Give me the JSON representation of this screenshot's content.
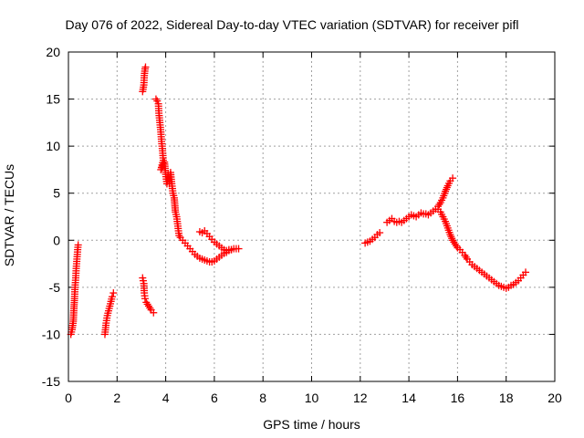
{
  "chart_data": {
    "type": "scatter",
    "title": "Day 076 of 2022, Sidereal Day-to-day VTEC variation (SDTVAR) for receiver pifl",
    "xlabel": "GPS time / hours",
    "ylabel": "SDTVAR / TECUs",
    "xlim": [
      0,
      20
    ],
    "ylim": [
      -15,
      20
    ],
    "xticks": [
      "0",
      "2",
      "4",
      "6",
      "8",
      "10",
      "12",
      "14",
      "16",
      "18",
      "20"
    ],
    "yticks": [
      "-15",
      "-10",
      "-5",
      "0",
      "5",
      "10",
      "15",
      "20"
    ],
    "grid": true,
    "marker": "+",
    "color": "#ff0000",
    "series": [
      {
        "name": "SDTVAR",
        "segments": [
          [
            [
              0.1,
              -10.0
            ],
            [
              0.15,
              -9.5
            ],
            [
              0.2,
              -8.6
            ],
            [
              0.22,
              -7.5
            ],
            [
              0.25,
              -6.2
            ],
            [
              0.27,
              -5.0
            ],
            [
              0.3,
              -4.0
            ],
            [
              0.32,
              -3.0
            ],
            [
              0.35,
              -2.0
            ],
            [
              0.38,
              -1.0
            ],
            [
              0.4,
              -0.5
            ]
          ],
          [
            [
              1.5,
              -10.0
            ],
            [
              1.55,
              -8.8
            ],
            [
              1.6,
              -8.0
            ],
            [
              1.65,
              -7.5
            ],
            [
              1.7,
              -7.0
            ],
            [
              1.75,
              -6.5
            ],
            [
              1.8,
              -6.0
            ],
            [
              1.85,
              -5.6
            ]
          ],
          [
            [
              3.05,
              -4.0
            ],
            [
              3.1,
              -4.6
            ],
            [
              3.12,
              -5.6
            ],
            [
              3.15,
              -6.2
            ],
            [
              3.2,
              -6.6
            ],
            [
              3.3,
              -7.0
            ],
            [
              3.4,
              -7.4
            ],
            [
              3.5,
              -7.7
            ]
          ],
          [
            [
              3.05,
              15.8
            ],
            [
              3.1,
              16.5
            ],
            [
              3.12,
              17.5
            ],
            [
              3.15,
              18.2
            ],
            [
              3.17,
              18.4
            ]
          ],
          [
            [
              3.6,
              15.0
            ],
            [
              3.65,
              14.8
            ],
            [
              3.7,
              14.5
            ],
            [
              3.72,
              13.5
            ],
            [
              3.76,
              12.5
            ],
            [
              3.8,
              11.5
            ],
            [
              3.83,
              10.5
            ],
            [
              3.87,
              9.5
            ],
            [
              3.9,
              8.5
            ],
            [
              3.8,
              7.5
            ],
            [
              3.95,
              8.3
            ],
            [
              4.0,
              7.0
            ],
            [
              4.05,
              6.0
            ],
            [
              4.1,
              7.0
            ],
            [
              4.15,
              6.0
            ],
            [
              4.2,
              7.2
            ],
            [
              4.25,
              6.0
            ],
            [
              4.3,
              5.0
            ],
            [
              4.35,
              4.5
            ],
            [
              4.4,
              3.0
            ],
            [
              4.45,
              2.5
            ],
            [
              4.5,
              1.5
            ],
            [
              4.55,
              0.5
            ],
            [
              4.6,
              0.3
            ],
            [
              4.7,
              0.0
            ],
            [
              4.8,
              -0.3
            ],
            [
              4.9,
              -0.6
            ],
            [
              5.0,
              -0.9
            ],
            [
              5.1,
              -1.2
            ],
            [
              5.2,
              -1.5
            ],
            [
              5.3,
              -1.7
            ],
            [
              5.4,
              -1.9
            ],
            [
              5.5,
              -2.0
            ],
            [
              5.6,
              -2.1
            ],
            [
              5.7,
              -2.2
            ],
            [
              5.8,
              -2.3
            ],
            [
              5.9,
              -2.3
            ],
            [
              6.0,
              -2.2
            ],
            [
              6.1,
              -2.0
            ],
            [
              6.2,
              -1.8
            ],
            [
              6.3,
              -1.6
            ],
            [
              6.4,
              -1.4
            ],
            [
              6.5,
              -1.3
            ],
            [
              6.6,
              -1.1
            ],
            [
              6.7,
              -1.0
            ],
            [
              6.8,
              -0.9
            ],
            [
              6.9,
              -0.9
            ],
            [
              7.0,
              -0.9
            ]
          ],
          [
            [
              5.4,
              0.9
            ],
            [
              5.5,
              0.8
            ],
            [
              5.6,
              1.0
            ],
            [
              5.7,
              0.7
            ],
            [
              5.8,
              0.4
            ],
            [
              5.9,
              0.1
            ],
            [
              6.0,
              -0.2
            ],
            [
              6.1,
              -0.4
            ],
            [
              6.2,
              -0.6
            ],
            [
              6.3,
              -0.8
            ],
            [
              6.4,
              -1.0
            ],
            [
              6.5,
              -1.1
            ],
            [
              6.6,
              -1.0
            ],
            [
              6.7,
              -1.0
            ]
          ],
          [
            [
              12.2,
              -0.3
            ],
            [
              12.3,
              -0.2
            ],
            [
              12.4,
              -0.1
            ],
            [
              12.5,
              0.1
            ],
            [
              12.6,
              0.3
            ],
            [
              12.7,
              0.6
            ],
            [
              12.8,
              0.8
            ]
          ],
          [
            [
              13.1,
              1.9
            ],
            [
              13.2,
              2.1
            ],
            [
              13.3,
              2.3
            ],
            [
              13.4,
              2.0
            ],
            [
              13.5,
              1.9
            ],
            [
              13.6,
              2.0
            ],
            [
              13.7,
              1.9
            ],
            [
              13.8,
              2.1
            ],
            [
              13.9,
              2.3
            ],
            [
              14.0,
              2.5
            ],
            [
              14.1,
              2.7
            ],
            [
              14.2,
              2.6
            ],
            [
              14.3,
              2.5
            ],
            [
              14.4,
              2.7
            ],
            [
              14.5,
              2.9
            ],
            [
              14.6,
              2.8
            ],
            [
              14.7,
              2.8
            ],
            [
              14.8,
              2.7
            ],
            [
              14.9,
              2.9
            ],
            [
              15.0,
              3.1
            ],
            [
              15.1,
              3.3
            ],
            [
              15.2,
              3.6
            ],
            [
              15.3,
              4.0
            ],
            [
              15.4,
              4.5
            ],
            [
              15.5,
              5.2
            ],
            [
              15.6,
              5.8
            ],
            [
              15.7,
              6.3
            ],
            [
              15.8,
              6.6
            ]
          ],
          [
            [
              15.2,
              3.3
            ],
            [
              15.3,
              3.0
            ],
            [
              15.4,
              2.5
            ],
            [
              15.5,
              2.0
            ],
            [
              15.6,
              1.3
            ],
            [
              15.7,
              0.6
            ],
            [
              15.8,
              0.0
            ],
            [
              15.9,
              -0.4
            ],
            [
              16.0,
              -0.8
            ],
            [
              16.1,
              -1.0
            ],
            [
              16.2,
              -1.3
            ],
            [
              16.3,
              -1.6
            ],
            [
              16.4,
              -2.0
            ],
            [
              16.5,
              -2.3
            ],
            [
              16.6,
              -2.6
            ],
            [
              16.7,
              -2.8
            ],
            [
              16.8,
              -3.0
            ],
            [
              16.9,
              -3.2
            ],
            [
              17.0,
              -3.4
            ],
            [
              17.1,
              -3.6
            ],
            [
              17.2,
              -3.8
            ],
            [
              17.3,
              -4.0
            ],
            [
              17.4,
              -4.2
            ],
            [
              17.5,
              -4.4
            ],
            [
              17.6,
              -4.6
            ],
            [
              17.7,
              -4.8
            ],
            [
              17.8,
              -4.9
            ],
            [
              17.9,
              -5.0
            ],
            [
              18.0,
              -5.1
            ],
            [
              18.1,
              -5.0
            ],
            [
              18.2,
              -4.8
            ],
            [
              18.3,
              -4.7
            ],
            [
              18.4,
              -4.5
            ],
            [
              18.5,
              -4.3
            ],
            [
              18.6,
              -4.0
            ],
            [
              18.7,
              -3.7
            ],
            [
              18.8,
              -3.4
            ]
          ]
        ]
      }
    ]
  }
}
